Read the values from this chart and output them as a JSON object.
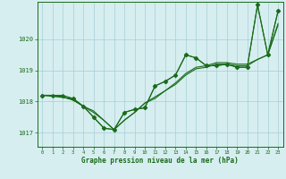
{
  "bg_color": "#d6eef0",
  "grid_color": "#a8cdd4",
  "line_color": "#1a6b1a",
  "marker_color": "#1a6b1a",
  "xlabel": "Graphe pression niveau de la mer (hPa)",
  "xlabel_color": "#1a6b1a",
  "ylabel_ticks": [
    1017,
    1018,
    1019,
    1020
  ],
  "xlim": [
    -0.5,
    23.5
  ],
  "ylim": [
    1016.55,
    1021.2
  ],
  "series1_with_markers": {
    "x": [
      0,
      1,
      2,
      3,
      4,
      5,
      6,
      7,
      8,
      9,
      10,
      11,
      12,
      13,
      14,
      15,
      16,
      17,
      18,
      19,
      20,
      21,
      22,
      23
    ],
    "y": [
      1018.2,
      1018.2,
      1018.2,
      1018.1,
      1017.85,
      1017.5,
      1017.15,
      1017.1,
      1017.65,
      1017.75,
      1017.8,
      1018.5,
      1018.65,
      1018.85,
      1019.5,
      1019.4,
      1019.15,
      1019.15,
      1019.2,
      1019.1,
      1019.1,
      1021.1,
      1019.5,
      1020.9
    ]
  },
  "series2_line_only": {
    "x": [
      0,
      1,
      2,
      3,
      4,
      5,
      6,
      7,
      8,
      9,
      10,
      11,
      12,
      13,
      14,
      15,
      16,
      17,
      18,
      19,
      20,
      21,
      22,
      23
    ],
    "y": [
      1018.2,
      1018.2,
      1018.15,
      1018.05,
      1017.85,
      1017.65,
      1017.4,
      1017.1,
      1017.4,
      1017.65,
      1017.95,
      1018.1,
      1018.35,
      1018.55,
      1018.85,
      1019.05,
      1019.1,
      1019.2,
      1019.2,
      1019.15,
      1019.15,
      1019.35,
      1019.5,
      1020.45
    ]
  },
  "series3_line_only": {
    "x": [
      0,
      1,
      2,
      3,
      4,
      5,
      6,
      7,
      8,
      9,
      10,
      11,
      12,
      13,
      14,
      15,
      16,
      17,
      18,
      19,
      20,
      21,
      22,
      23
    ],
    "y": [
      1018.2,
      1018.2,
      1018.15,
      1018.05,
      1017.85,
      1017.7,
      1017.4,
      1017.1,
      1017.4,
      1017.65,
      1017.95,
      1018.15,
      1018.35,
      1018.6,
      1018.9,
      1019.1,
      1019.15,
      1019.25,
      1019.25,
      1019.2,
      1019.2,
      1019.35,
      1019.5,
      1020.5
    ]
  },
  "series4_with_markers": {
    "x": [
      0,
      3,
      4,
      5,
      6,
      7,
      8,
      9,
      10,
      11,
      12,
      13,
      14,
      15,
      16,
      17,
      18,
      19,
      20,
      21,
      22,
      23
    ],
    "y": [
      1018.2,
      1018.1,
      1017.85,
      1017.5,
      1017.15,
      1017.1,
      1017.65,
      1017.75,
      1017.8,
      1018.5,
      1018.65,
      1018.85,
      1019.5,
      1019.4,
      1019.15,
      1019.15,
      1019.2,
      1019.1,
      1019.1,
      1021.1,
      1019.5,
      1020.9
    ]
  }
}
